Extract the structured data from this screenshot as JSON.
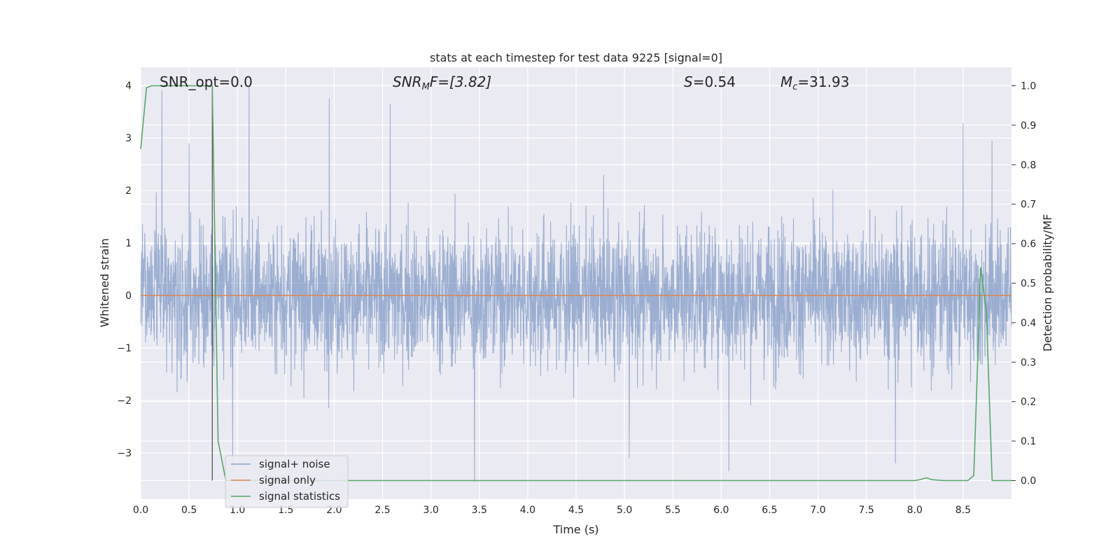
{
  "chart_data": {
    "type": "line",
    "title": "stats at each timestep for test data 9225 [signal=0]",
    "xlabel": "Time (s)",
    "ylabel_left": "Whitened strain",
    "ylabel_right": "Detection probability/MF",
    "xlim": [
      0.0,
      9.0
    ],
    "ylim_left": [
      -3.88,
      4.35
    ],
    "ylim_right": [
      -0.047,
      1.047
    ],
    "x_ticks": [
      "0.0",
      "0.5",
      "1.0",
      "1.5",
      "2.0",
      "2.5",
      "3.0",
      "3.5",
      "4.0",
      "4.5",
      "5.0",
      "5.5",
      "6.0",
      "6.5",
      "7.0",
      "7.5",
      "8.0",
      "8.5"
    ],
    "y_left_ticks": [
      "4",
      "3",
      "2",
      "1",
      "0",
      "−1",
      "−2",
      "−3"
    ],
    "y_right_ticks": [
      "1.0",
      "0.9",
      "0.8",
      "0.7",
      "0.6",
      "0.5",
      "0.4",
      "0.3",
      "0.2",
      "0.1",
      "0.0"
    ],
    "grid": true,
    "legend_position": "lower-left",
    "annotations": {
      "snr_opt": "SNR_opt=0.0",
      "snr_mf_sym": "SNR",
      "snr_mf_sub": "M",
      "snr_mf_rest": "F=[3.82]",
      "s_sym": "S",
      "s_val": "=0.54",
      "mc_sym": "M",
      "mc_sub": "c",
      "mc_val": "=31.93"
    },
    "vline_x": 0.74,
    "series": [
      {
        "name": "signal+ noise",
        "color": "#4c72b0",
        "envelope": {
          "noise_rms": 0.95,
          "max_peak": 4.0,
          "min_peak": -3.55,
          "notable_peaks": [
            [
              0.22,
              3.9
            ],
            [
              0.5,
              2.9
            ],
            [
              1.12,
              4.0
            ],
            [
              1.95,
              3.75
            ],
            [
              2.58,
              3.65
            ],
            [
              8.5,
              3.28
            ],
            [
              8.8,
              2.95
            ]
          ],
          "notable_troughs": [
            [
              3.45,
              -3.55
            ],
            [
              6.08,
              -3.35
            ],
            [
              5.05,
              -3.1
            ],
            [
              7.8,
              -3.2
            ],
            [
              0.95,
              -3.3
            ]
          ]
        }
      },
      {
        "name": "signal only",
        "color": "#dd8452",
        "x": [
          0.0,
          9.0
        ],
        "y": [
          0.0,
          0.0
        ]
      },
      {
        "name": "signal statistics",
        "color": "#55a868",
        "x": [
          0.0,
          0.06,
          0.11,
          0.2,
          0.3,
          0.4,
          0.5,
          0.6,
          0.67,
          0.74,
          0.8,
          0.88,
          0.95,
          1.05,
          2.0,
          3.0,
          4.0,
          5.0,
          6.0,
          7.0,
          8.0,
          8.05,
          8.12,
          8.18,
          8.3,
          8.45,
          8.55,
          8.61,
          8.65,
          8.68,
          8.74,
          8.8,
          8.86,
          8.94,
          9.0
        ],
        "y": [
          0.84,
          0.995,
          1.0,
          1.0,
          1.0,
          1.0,
          1.0,
          1.0,
          1.0,
          1.0,
          0.1,
          0.0,
          0.0,
          0.0,
          0.0,
          0.0,
          0.0,
          0.0,
          0.0,
          0.0,
          0.0,
          0.002,
          0.007,
          0.002,
          0.0,
          0.0,
          0.0,
          0.013,
          0.3,
          0.54,
          0.43,
          0.0,
          0.0,
          0.0,
          0.0
        ]
      }
    ]
  }
}
